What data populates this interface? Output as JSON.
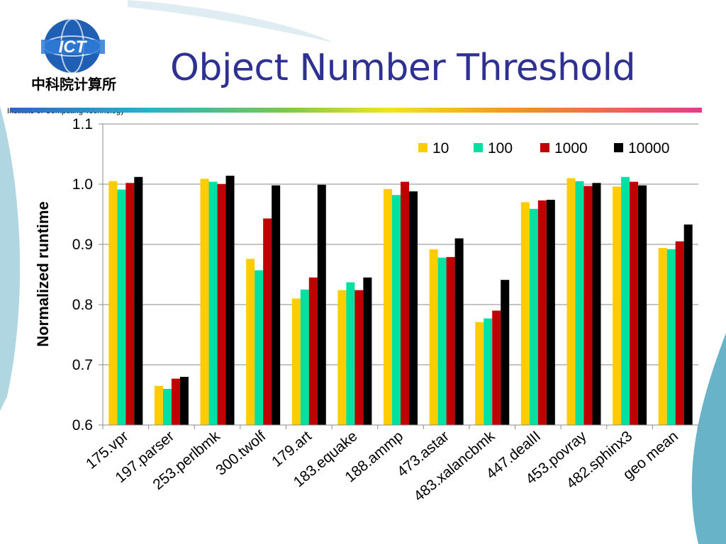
{
  "header": {
    "title": "Object Number Threshold",
    "logo_text": "ICT",
    "logo_chinese": "中科院计算所",
    "logo_org": "Institute of Computing Technology"
  },
  "colors": {
    "title": "#2e3192",
    "series": [
      "#ffcc00",
      "#00e0a0",
      "#c00000",
      "#000000"
    ]
  },
  "chart_data": {
    "type": "bar",
    "title": "",
    "xlabel": "",
    "ylabel": "Normalized runtime",
    "ylim": [
      0.6,
      1.1
    ],
    "yticks": [
      "0.6",
      "0.7",
      "0.8",
      "0.9",
      "1.0",
      "1.1"
    ],
    "grid": true,
    "legend_position": "top-right",
    "categories": [
      "175.vpr",
      "197.parser",
      "253.perlbmk",
      "300.twolf",
      "179.art",
      "183.equake",
      "188.ammp",
      "473.astar",
      "483.xalancbmk",
      "447.dealII",
      "453.povray",
      "482.sphinx3",
      "geo mean"
    ],
    "series": [
      {
        "name": "10",
        "values": [
          1.005,
          0.665,
          1.009,
          0.876,
          0.81,
          0.824,
          0.992,
          0.892,
          0.771,
          0.97,
          1.01,
          0.996,
          0.894
        ]
      },
      {
        "name": "100",
        "values": [
          0.991,
          0.66,
          1.004,
          0.857,
          0.825,
          0.837,
          0.982,
          0.878,
          0.777,
          0.959,
          1.005,
          1.012,
          0.892
        ]
      },
      {
        "name": "1000",
        "values": [
          1.002,
          0.677,
          1.0,
          0.943,
          0.845,
          0.824,
          1.004,
          0.879,
          0.79,
          0.973,
          0.997,
          1.004,
          0.905
        ]
      },
      {
        "name": "10000",
        "values": [
          1.012,
          0.68,
          1.014,
          0.998,
          0.999,
          0.845,
          0.988,
          0.91,
          0.841,
          0.974,
          1.002,
          0.998,
          0.933
        ]
      }
    ]
  }
}
